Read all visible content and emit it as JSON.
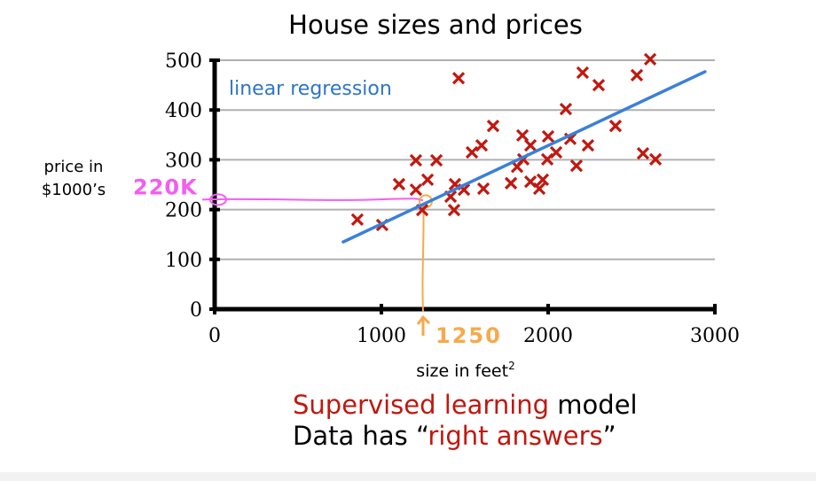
{
  "chart_data": {
    "type": "scatter",
    "title": "House sizes and prices",
    "xlabel": "size in feet",
    "xlabel_superscript": "2",
    "ylabel_lines": [
      "price in",
      "$1000’s"
    ],
    "xlim": [
      0,
      3000
    ],
    "ylim": [
      0,
      500
    ],
    "x_ticks": [
      0,
      1000,
      2000,
      3000
    ],
    "y_ticks": [
      0,
      100,
      200,
      300,
      400,
      500
    ],
    "grid": true,
    "points": [
      [
        856,
        180
      ],
      [
        1005,
        169
      ],
      [
        1106,
        251
      ],
      [
        1207,
        299
      ],
      [
        1330,
        299
      ],
      [
        1207,
        240
      ],
      [
        1277,
        260
      ],
      [
        1245,
        199
      ],
      [
        1441,
        251
      ],
      [
        1415,
        226
      ],
      [
        1436,
        199
      ],
      [
        1495,
        240
      ],
      [
        1612,
        242
      ],
      [
        1463,
        464
      ],
      [
        1543,
        315
      ],
      [
        1601,
        329
      ],
      [
        1670,
        368
      ],
      [
        1777,
        253
      ],
      [
        1814,
        286
      ],
      [
        1851,
        301
      ],
      [
        1846,
        349
      ],
      [
        1894,
        329
      ],
      [
        1894,
        256
      ],
      [
        1947,
        242
      ],
      [
        1968,
        260
      ],
      [
        2000,
        347
      ],
      [
        1995,
        301
      ],
      [
        2048,
        315
      ],
      [
        2106,
        402
      ],
      [
        2133,
        342
      ],
      [
        2170,
        288
      ],
      [
        2239,
        329
      ],
      [
        2207,
        475
      ],
      [
        2303,
        450
      ],
      [
        2404,
        368
      ],
      [
        2532,
        470
      ],
      [
        2612,
        502
      ],
      [
        2569,
        313
      ],
      [
        2644,
        301
      ]
    ],
    "series_color": "#c0180f",
    "regression_line": {
      "label": "linear regression",
      "x": [
        771,
        2941
      ],
      "y": [
        135,
        477
      ],
      "color": "#3a80d9"
    },
    "annotations": {
      "price_mark": {
        "text": "220K",
        "value": 220,
        "color": "#f35ef0"
      },
      "size_mark": {
        "text": "1250",
        "value": 1250,
        "color": "#f7a94a"
      }
    }
  },
  "captions": {
    "line1_red": "Supervised learning",
    "line1_black": " model",
    "line2_black": "Data has “",
    "line2_red": "right answers",
    "line2_close": "”"
  }
}
